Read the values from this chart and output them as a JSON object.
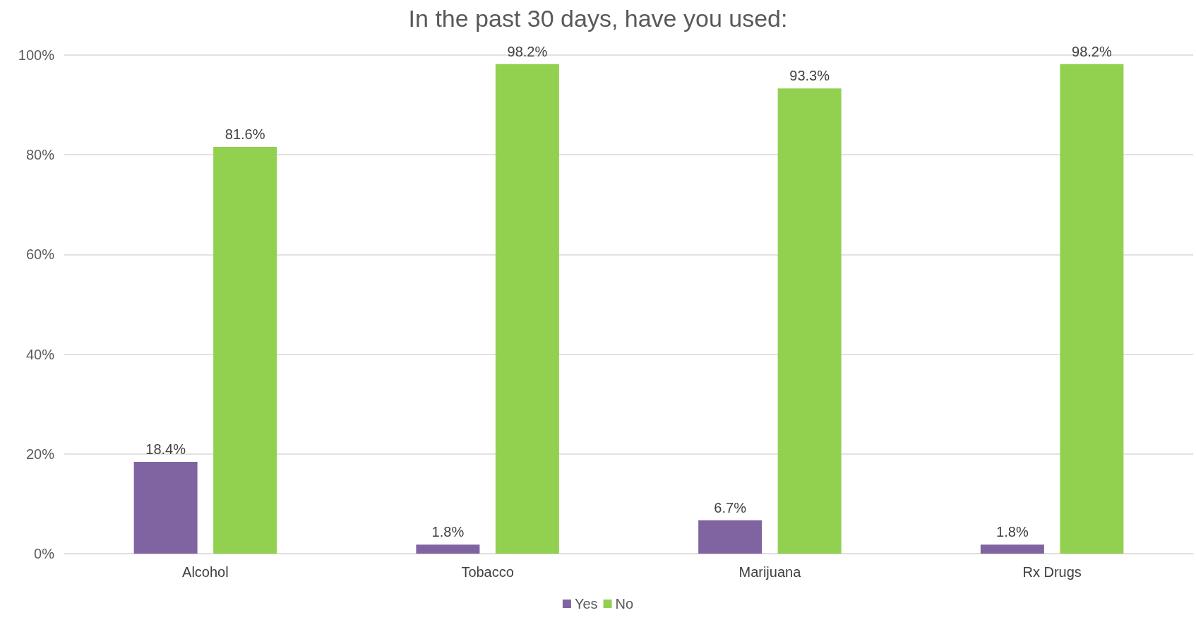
{
  "chart_data": {
    "type": "bar",
    "title": "In the past 30 days, have you used:",
    "categories": [
      "Alcohol",
      "Tobacco",
      "Marijuana",
      "Rx Drugs"
    ],
    "series": [
      {
        "name": "Yes",
        "color": "#8064a2",
        "values": [
          18.4,
          1.8,
          6.7,
          1.8
        ],
        "value_labels": [
          "18.4%",
          "1.8%",
          "6.7%",
          "1.8%"
        ]
      },
      {
        "name": "No",
        "color": "#92d050",
        "values": [
          81.6,
          98.2,
          93.3,
          98.2
        ],
        "value_labels": [
          "81.6%",
          "98.2%",
          "93.3%",
          "98.2%"
        ]
      }
    ],
    "ylim": [
      0,
      100
    ],
    "yticks": [
      {
        "value": 0,
        "label": "0%"
      },
      {
        "value": 20,
        "label": "20%"
      },
      {
        "value": 40,
        "label": "40%"
      },
      {
        "value": 60,
        "label": "60%"
      },
      {
        "value": 80,
        "label": "80%"
      },
      {
        "value": 100,
        "label": "100%"
      }
    ],
    "grid": "y",
    "legend": "bottom"
  }
}
